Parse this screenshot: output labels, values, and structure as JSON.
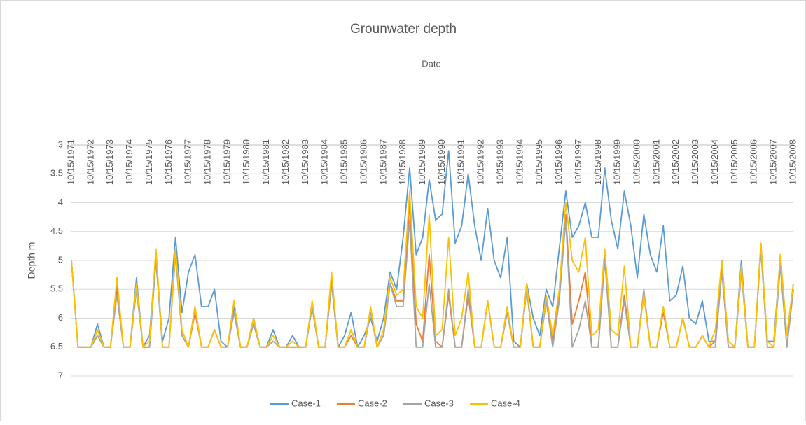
{
  "chart_data": {
    "type": "line",
    "title": "Grounwater depth",
    "x_label": "Date",
    "y_label": "Depth m",
    "categories": [
      "10/15/1971",
      null,
      null,
      "10/15/1972",
      null,
      null,
      "10/15/1973",
      null,
      null,
      "10/15/1974",
      null,
      null,
      "10/15/1975",
      null,
      null,
      "10/15/1976",
      null,
      null,
      "10/15/1977",
      null,
      null,
      "10/15/1978",
      null,
      null,
      "10/15/1979",
      null,
      null,
      "10/15/1980",
      null,
      null,
      "10/15/1981",
      null,
      null,
      "10/15/1982",
      null,
      null,
      "10/15/1983",
      null,
      null,
      "10/15/1984",
      null,
      null,
      "10/15/1985",
      null,
      null,
      "10/15/1986",
      null,
      null,
      "10/15/1987",
      null,
      null,
      "10/15/1988",
      null,
      null,
      "10/15/1989",
      null,
      null,
      "10/15/1990",
      null,
      null,
      "10/15/1991",
      null,
      null,
      "10/15/1992",
      null,
      null,
      "10/15/1993",
      null,
      null,
      "10/15/1994",
      null,
      null,
      "10/15/1995",
      null,
      null,
      "10/15/1996",
      null,
      null,
      "10/15/1997",
      null,
      null,
      "10/15/1998",
      null,
      null,
      "10/15/1999",
      null,
      null,
      "10/15/2000",
      null,
      null,
      "10/15/2001",
      null,
      null,
      "10/15/2002",
      null,
      null,
      "10/15/2003",
      null,
      null,
      "10/15/2004",
      null,
      null,
      "10/15/2005",
      null,
      null,
      "10/15/2006",
      null,
      null,
      "10/15/2007",
      null,
      null,
      "10/15/2008"
    ],
    "series": [
      {
        "name": "Case-1",
        "color": "#5b9bd5",
        "values": [
          5.0,
          6.5,
          6.5,
          6.5,
          6.1,
          6.5,
          6.5,
          5.4,
          6.5,
          6.5,
          5.3,
          6.5,
          6.3,
          4.9,
          6.4,
          6.0,
          4.6,
          5.9,
          5.2,
          4.9,
          5.8,
          5.8,
          5.5,
          6.4,
          6.5,
          5.8,
          6.5,
          6.5,
          6.0,
          6.5,
          6.5,
          6.2,
          6.5,
          6.5,
          6.3,
          6.5,
          6.5,
          5.8,
          6.5,
          6.5,
          5.3,
          6.5,
          6.3,
          5.9,
          6.5,
          6.3,
          6.0,
          6.4,
          6.0,
          5.2,
          5.5,
          4.6,
          3.4,
          4.9,
          4.6,
          3.6,
          4.3,
          4.2,
          3.1,
          4.7,
          4.4,
          3.5,
          4.4,
          5.0,
          4.1,
          5.0,
          5.3,
          4.6,
          6.4,
          6.5,
          5.4,
          6.0,
          6.3,
          5.5,
          5.8,
          4.8,
          3.8,
          4.6,
          4.4,
          4.0,
          4.6,
          4.6,
          3.4,
          4.3,
          4.8,
          3.8,
          4.4,
          5.3,
          4.2,
          4.9,
          5.2,
          4.4,
          5.7,
          5.6,
          5.1,
          6.0,
          6.1,
          5.7,
          6.4,
          6.4,
          5.0,
          6.4,
          6.5,
          5.0,
          6.5,
          6.5,
          4.7,
          6.4,
          6.4,
          4.9,
          6.3,
          5.4
        ]
      },
      {
        "name": "Case-2",
        "color": "#ed7d31",
        "values": [
          5.0,
          6.5,
          6.5,
          6.5,
          6.3,
          6.5,
          6.5,
          5.5,
          6.5,
          6.5,
          5.5,
          6.5,
          6.5,
          4.9,
          6.5,
          6.5,
          4.8,
          6.3,
          6.5,
          5.9,
          6.5,
          6.5,
          6.2,
          6.5,
          6.5,
          5.9,
          6.5,
          6.5,
          6.1,
          6.5,
          6.5,
          6.4,
          6.5,
          6.5,
          6.5,
          6.5,
          6.5,
          5.8,
          6.5,
          6.5,
          5.4,
          6.5,
          6.5,
          6.3,
          6.5,
          6.5,
          5.9,
          6.5,
          6.3,
          5.4,
          5.7,
          5.7,
          4.0,
          6.1,
          6.4,
          4.9,
          6.4,
          6.5,
          5.6,
          6.5,
          6.5,
          5.6,
          6.5,
          6.5,
          5.7,
          6.5,
          6.5,
          5.9,
          6.5,
          6.5,
          5.5,
          6.5,
          6.5,
          5.7,
          6.4,
          5.6,
          4.2,
          6.1,
          5.7,
          5.2,
          6.5,
          6.5,
          4.9,
          6.5,
          6.5,
          5.6,
          6.5,
          6.5,
          5.6,
          6.5,
          6.5,
          5.9,
          6.5,
          6.5,
          6.0,
          6.5,
          6.5,
          6.3,
          6.5,
          6.4,
          5.1,
          6.5,
          6.5,
          5.2,
          6.5,
          6.5,
          4.8,
          6.5,
          6.5,
          5.0,
          6.5,
          5.5
        ]
      },
      {
        "name": "Case-3",
        "color": "#a5a5a5",
        "values": [
          5.0,
          6.5,
          6.5,
          6.5,
          6.3,
          6.5,
          6.5,
          5.6,
          6.5,
          6.5,
          5.5,
          6.5,
          6.5,
          5.0,
          6.5,
          6.5,
          4.9,
          6.3,
          6.5,
          5.8,
          6.5,
          6.5,
          6.2,
          6.5,
          6.5,
          5.9,
          6.5,
          6.5,
          6.1,
          6.5,
          6.5,
          6.4,
          6.5,
          6.5,
          6.5,
          6.5,
          6.5,
          5.8,
          6.5,
          6.5,
          5.4,
          6.5,
          6.5,
          6.2,
          6.5,
          6.5,
          5.9,
          6.5,
          6.3,
          5.4,
          5.8,
          5.8,
          4.3,
          6.5,
          6.5,
          5.4,
          6.5,
          6.5,
          5.5,
          6.5,
          6.5,
          5.5,
          6.5,
          6.5,
          5.7,
          6.5,
          6.5,
          5.9,
          6.5,
          6.5,
          5.5,
          6.5,
          6.5,
          5.7,
          6.5,
          5.7,
          4.3,
          6.5,
          6.2,
          5.7,
          6.5,
          6.5,
          5.0,
          6.5,
          6.5,
          5.7,
          6.5,
          6.5,
          5.5,
          6.5,
          6.5,
          5.8,
          6.5,
          6.5,
          6.0,
          6.5,
          6.5,
          6.3,
          6.5,
          6.5,
          5.2,
          6.5,
          6.5,
          5.2,
          6.5,
          6.5,
          4.8,
          6.5,
          6.5,
          5.1,
          6.5,
          5.5
        ]
      },
      {
        "name": "Case-4",
        "color": "#ffc000",
        "values": [
          5.0,
          6.5,
          6.5,
          6.5,
          6.2,
          6.5,
          6.5,
          5.3,
          6.5,
          6.5,
          5.4,
          6.5,
          6.4,
          4.8,
          6.5,
          6.5,
          4.8,
          6.2,
          6.5,
          5.8,
          6.5,
          6.5,
          6.2,
          6.5,
          6.5,
          5.7,
          6.5,
          6.5,
          6.0,
          6.5,
          6.5,
          6.3,
          6.5,
          6.5,
          6.4,
          6.5,
          6.5,
          5.7,
          6.5,
          6.5,
          5.2,
          6.5,
          6.5,
          6.2,
          6.5,
          6.5,
          5.8,
          6.5,
          6.2,
          5.3,
          5.6,
          5.5,
          3.8,
          5.8,
          6.0,
          4.2,
          6.3,
          6.2,
          4.6,
          6.3,
          6.0,
          5.2,
          6.5,
          6.5,
          5.7,
          6.5,
          6.5,
          5.8,
          6.5,
          6.5,
          5.4,
          6.5,
          6.5,
          5.6,
          6.3,
          5.5,
          4.0,
          5.0,
          5.2,
          4.6,
          6.3,
          6.2,
          4.8,
          6.2,
          6.3,
          5.1,
          6.5,
          6.5,
          5.6,
          6.5,
          6.5,
          5.8,
          6.5,
          6.5,
          6.0,
          6.5,
          6.5,
          6.3,
          6.5,
          6.2,
          5.0,
          6.4,
          6.5,
          5.1,
          6.5,
          6.5,
          4.7,
          6.4,
          6.5,
          4.9,
          6.3,
          5.4
        ]
      }
    ],
    "ylim": [
      3,
      7
    ],
    "yticks": [
      3,
      3.5,
      4,
      4.5,
      5,
      5.5,
      6,
      6.5,
      7
    ],
    "y_inverted": true,
    "grid": true,
    "legend": "bottom"
  }
}
